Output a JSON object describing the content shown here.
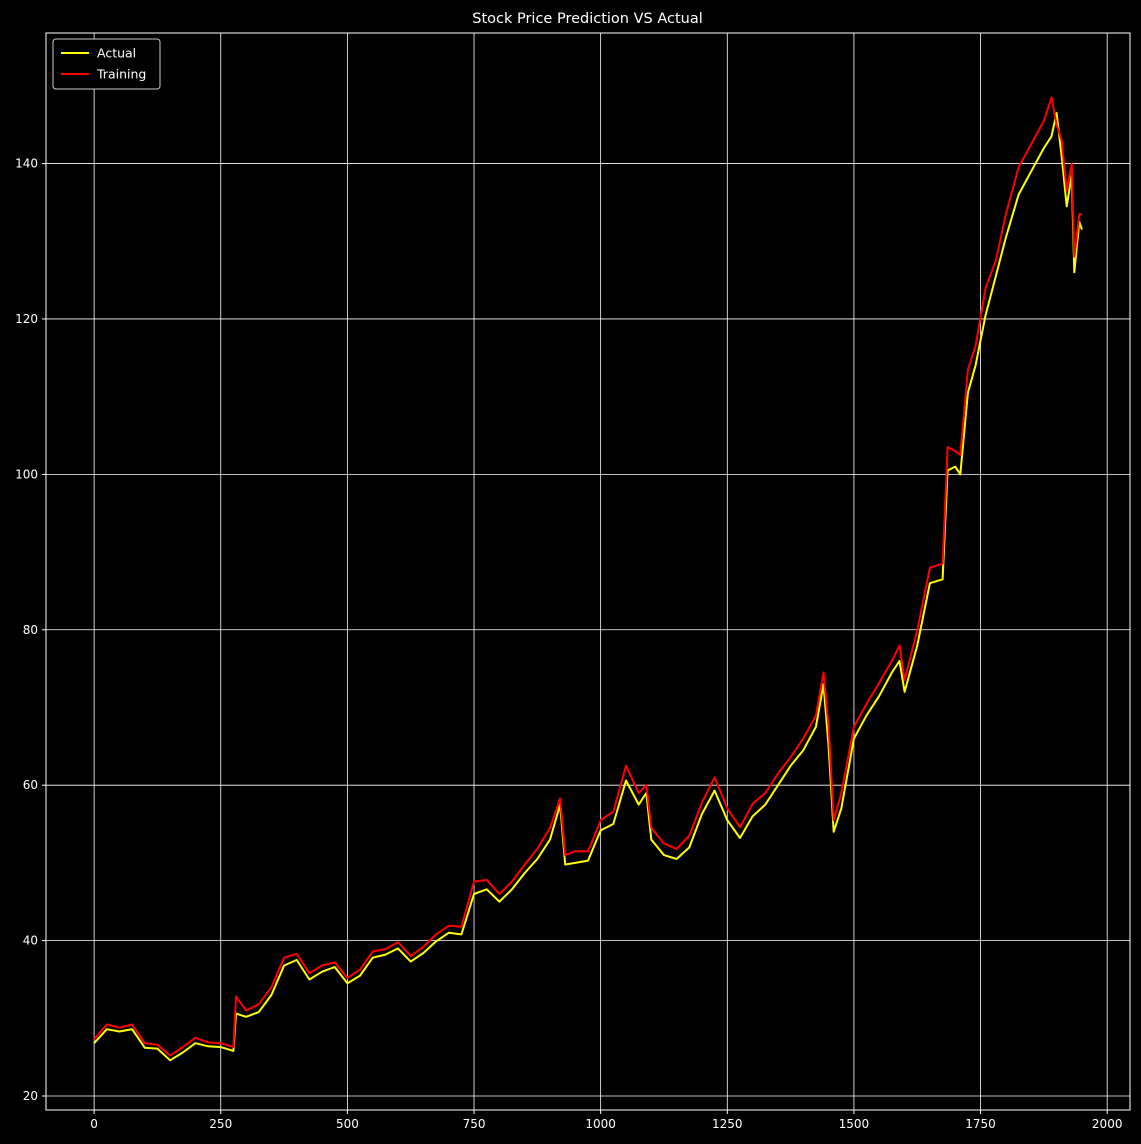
{
  "chart_data": {
    "type": "line",
    "title": "Stock Price Prediction VS Actual",
    "xlabel": "",
    "ylabel": "",
    "xlim": [
      -95,
      2045
    ],
    "ylim": [
      18.2,
      156.8
    ],
    "xticks": [
      0,
      250,
      500,
      750,
      1000,
      1250,
      1500,
      1750,
      2000
    ],
    "yticks": [
      20,
      40,
      60,
      80,
      100,
      120,
      140
    ],
    "grid": true,
    "legend_position": "top-left",
    "background": "#000000",
    "series": [
      {
        "name": "Actual",
        "color": "#ffff00",
        "x": [
          0,
          25,
          50,
          75,
          100,
          125,
          150,
          175,
          200,
          225,
          250,
          275,
          280,
          300,
          325,
          350,
          375,
          400,
          425,
          450,
          475,
          500,
          525,
          550,
          575,
          600,
          625,
          650,
          675,
          700,
          725,
          750,
          775,
          800,
          825,
          850,
          875,
          900,
          920,
          930,
          950,
          975,
          1000,
          1025,
          1050,
          1075,
          1090,
          1100,
          1125,
          1150,
          1175,
          1200,
          1225,
          1250,
          1275,
          1300,
          1325,
          1350,
          1375,
          1400,
          1425,
          1440,
          1450,
          1460,
          1475,
          1500,
          1525,
          1550,
          1575,
          1590,
          1600,
          1625,
          1650,
          1675,
          1685,
          1700,
          1710,
          1725,
          1740,
          1760,
          1780,
          1800,
          1825,
          1850,
          1875,
          1890,
          1900,
          1910,
          1920,
          1930,
          1935,
          1945,
          1950
        ],
        "y": [
          26.8,
          28.6,
          28.3,
          28.6,
          26.2,
          26.1,
          24.6,
          25.6,
          26.8,
          26.4,
          26.3,
          25.8,
          30.6,
          30.2,
          30.8,
          33.0,
          36.8,
          37.5,
          35.0,
          36.0,
          36.6,
          34.5,
          35.5,
          37.8,
          38.2,
          39.0,
          37.3,
          38.4,
          39.9,
          41.0,
          40.8,
          46.0,
          46.6,
          45.0,
          46.6,
          48.7,
          50.5,
          53.0,
          57.5,
          49.8,
          50.0,
          50.3,
          54.2,
          55.0,
          60.6,
          57.5,
          59.0,
          53.0,
          51.0,
          50.5,
          52.0,
          56.3,
          59.3,
          55.5,
          53.2,
          56.0,
          57.5,
          60.0,
          62.5,
          64.5,
          67.5,
          73.0,
          65.0,
          54.0,
          57.0,
          66.0,
          69.0,
          71.5,
          74.5,
          76.0,
          72.0,
          78.0,
          86.0,
          86.5,
          100.5,
          101.0,
          100.0,
          110.5,
          114.0,
          120.5,
          125.5,
          130.5,
          136.0,
          139.0,
          142.0,
          143.5,
          146.5,
          141.0,
          134.5,
          138.5,
          126.0,
          132.5,
          131.5
        ]
      },
      {
        "name": "Training",
        "color": "#ff0000",
        "x": [
          0,
          25,
          50,
          75,
          100,
          125,
          150,
          175,
          200,
          225,
          250,
          275,
          280,
          300,
          325,
          350,
          375,
          400,
          425,
          450,
          475,
          500,
          525,
          550,
          575,
          600,
          625,
          650,
          675,
          700,
          725,
          750,
          775,
          800,
          825,
          850,
          875,
          900,
          920,
          930,
          950,
          975,
          1000,
          1025,
          1050,
          1075,
          1090,
          1100,
          1125,
          1150,
          1175,
          1200,
          1225,
          1250,
          1275,
          1300,
          1325,
          1350,
          1375,
          1400,
          1425,
          1440,
          1450,
          1460,
          1475,
          1500,
          1525,
          1550,
          1575,
          1590,
          1600,
          1625,
          1650,
          1675,
          1685,
          1700,
          1710,
          1725,
          1740,
          1760,
          1780,
          1800,
          1825,
          1850,
          1875,
          1890,
          1900,
          1910,
          1920,
          1930,
          1935,
          1945,
          1950
        ],
        "y": [
          27.3,
          29.2,
          28.8,
          29.2,
          26.8,
          26.6,
          25.2,
          26.3,
          27.5,
          26.9,
          26.8,
          26.3,
          32.8,
          31.0,
          31.8,
          34.0,
          37.8,
          38.3,
          35.8,
          36.8,
          37.2,
          35.2,
          36.3,
          38.6,
          38.9,
          39.8,
          38.0,
          39.2,
          40.8,
          41.9,
          41.8,
          47.6,
          47.8,
          46.0,
          47.6,
          49.8,
          51.8,
          54.5,
          58.3,
          51.0,
          51.5,
          51.5,
          55.5,
          56.6,
          62.5,
          59.0,
          60.0,
          54.5,
          52.5,
          51.8,
          53.5,
          57.8,
          61.0,
          57.0,
          54.6,
          57.6,
          59.0,
          61.5,
          63.6,
          66.0,
          69.0,
          74.5,
          67.5,
          55.5,
          59.0,
          67.5,
          70.5,
          73.2,
          76.0,
          78.0,
          73.5,
          80.0,
          88.0,
          88.5,
          103.5,
          103.0,
          102.5,
          113.5,
          116.5,
          124.0,
          127.5,
          133.5,
          139.5,
          142.5,
          145.5,
          148.5,
          145.0,
          143.0,
          136.5,
          140.0,
          128.0,
          133.5,
          133.5
        ]
      }
    ]
  }
}
